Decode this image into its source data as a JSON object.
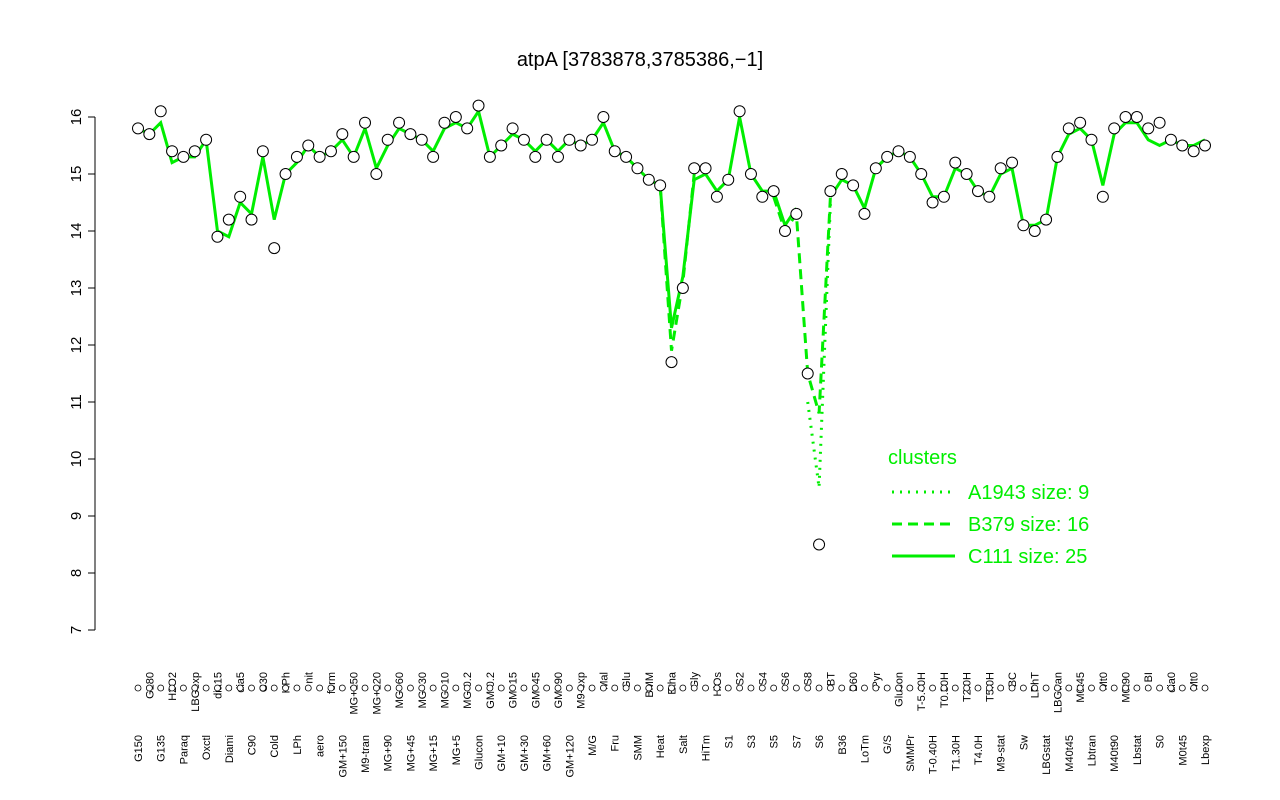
{
  "chart_data": {
    "type": "line",
    "title": "atpA [3783878,3785386,−1]",
    "categories": [
      "G150",
      "G180",
      "G135",
      "H2O2",
      "Paraq",
      "LBGexp",
      "Oxctl",
      "dia15",
      "Diami",
      "dia5",
      "C90",
      "C30",
      "Cold",
      "HPh",
      "LPh",
      "nit",
      "aero",
      "ferm",
      "GM+150",
      "MG+150",
      "M9-tran",
      "MG+120",
      "MG+90",
      "MG+60",
      "MG+45",
      "MG+30",
      "MG+15",
      "MG+10",
      "MG+5",
      "MG-0.2",
      "Glucon",
      "GM-0.2",
      "GM+10",
      "GM+15",
      "GM+30",
      "GM+45",
      "GM+60",
      "GM+90",
      "GM+120",
      "M9-exp",
      "M/G",
      "Mal",
      "Fru",
      "Glu",
      "SMM",
      "BMM",
      "Heat",
      "Etha",
      "Salt",
      "Gly",
      "HiTm",
      "HiOs",
      "S1",
      "S2",
      "S3",
      "S4",
      "S5",
      "S6",
      "S7",
      "S8",
      "S6",
      "BT",
      "B36",
      "B60",
      "LoTm",
      "Pyr",
      "G/S",
      "Glucon",
      "SMMPr",
      "T-5.40H",
      "T-0.40H",
      "T0.30H",
      "T1.30H",
      "T2.0H",
      "T4.0H",
      "T5.0H",
      "M9-stat",
      "BC",
      "Sw",
      "LPhT",
      "LBGstat",
      "LBGtran",
      "M40t45",
      "M0t45",
      "Lbtran",
      "Mt0",
      "M40t90",
      "M0t90",
      "Lbstat",
      "BI",
      "S0",
      "dia0",
      "M0t45",
      "Mt0",
      "Lbexp"
    ],
    "values": [
      15.8,
      15.7,
      16.1,
      15.4,
      15.3,
      15.4,
      15.6,
      13.9,
      14.2,
      14.6,
      14.2,
      15.4,
      13.7,
      15.0,
      15.3,
      15.5,
      15.3,
      15.4,
      15.7,
      15.3,
      15.9,
      15.0,
      15.6,
      15.9,
      15.7,
      15.6,
      15.3,
      15.9,
      16.0,
      15.8,
      16.2,
      15.3,
      15.5,
      15.8,
      15.6,
      15.3,
      15.6,
      15.3,
      15.6,
      15.5,
      15.6,
      16.0,
      15.4,
      15.3,
      15.1,
      14.9,
      14.8,
      11.7,
      13.0,
      15.1,
      15.1,
      14.6,
      14.9,
      16.1,
      15.0,
      14.6,
      14.7,
      14.0,
      14.3,
      11.5,
      8.5,
      14.7,
      15.0,
      14.8,
      14.3,
      15.1,
      15.3,
      15.4,
      15.3,
      15.0,
      14.5,
      14.6,
      15.2,
      15.0,
      14.7,
      14.6,
      15.1,
      15.2,
      14.1,
      14.0,
      14.2,
      15.3,
      15.8,
      15.9,
      15.6,
      14.6,
      15.8,
      16.0,
      16.0,
      15.8,
      15.9,
      15.6,
      15.5,
      15.4,
      15.5
    ],
    "point_color": "#ffffff",
    "series": [
      {
        "name": "A1943 size: 9",
        "color": "#00ee00",
        "dash": "2,6",
        "values": [
          null,
          null,
          null,
          null,
          null,
          null,
          null,
          null,
          null,
          null,
          null,
          null,
          null,
          null,
          null,
          null,
          null,
          null,
          null,
          null,
          null,
          null,
          null,
          null,
          null,
          null,
          null,
          null,
          null,
          null,
          null,
          null,
          null,
          null,
          null,
          null,
          null,
          null,
          null,
          null,
          null,
          null,
          null,
          null,
          null,
          null,
          null,
          null,
          null,
          null,
          null,
          null,
          null,
          null,
          null,
          null,
          null,
          null,
          null,
          11.0,
          9.5,
          14.5,
          null,
          null,
          null,
          null,
          null,
          null,
          null,
          null,
          null,
          null,
          null,
          null,
          null,
          null,
          null,
          null,
          null,
          null,
          null,
          null,
          null,
          null,
          null,
          null,
          null,
          null,
          null,
          null,
          null,
          null,
          null,
          null,
          null
        ]
      },
      {
        "name": "B379 size: 16",
        "color": "#00ee00",
        "dash": "10,6",
        "values": [
          null,
          null,
          null,
          null,
          null,
          null,
          null,
          null,
          null,
          null,
          null,
          null,
          null,
          null,
          null,
          null,
          null,
          null,
          null,
          null,
          null,
          null,
          null,
          null,
          null,
          null,
          null,
          null,
          null,
          null,
          null,
          null,
          null,
          null,
          null,
          null,
          null,
          null,
          null,
          null,
          null,
          null,
          null,
          null,
          null,
          null,
          14.8,
          11.9,
          13.1,
          15.0,
          null,
          null,
          null,
          null,
          null,
          null,
          14.6,
          14.0,
          14.3,
          11.5,
          10.8,
          14.6,
          null,
          null,
          null,
          null,
          null,
          null,
          null,
          null,
          null,
          null,
          null,
          null,
          null,
          null,
          null,
          null,
          null,
          null,
          null,
          null,
          null,
          null,
          null,
          null,
          null,
          null,
          null,
          null,
          null,
          null,
          null,
          null,
          null
        ]
      },
      {
        "name": "C111 size: 25",
        "color": "#00ee00",
        "dash": "",
        "values": [
          15.8,
          15.7,
          15.9,
          15.2,
          15.3,
          15.3,
          15.6,
          14.0,
          13.9,
          14.5,
          14.3,
          15.3,
          14.2,
          15.0,
          15.2,
          15.5,
          15.3,
          15.4,
          15.6,
          15.3,
          15.8,
          15.1,
          15.5,
          15.8,
          15.7,
          15.6,
          15.4,
          15.8,
          15.9,
          15.8,
          16.1,
          15.3,
          15.5,
          15.7,
          15.6,
          15.4,
          15.6,
          15.4,
          15.6,
          15.5,
          15.6,
          15.9,
          15.4,
          15.3,
          15.1,
          14.9,
          14.8,
          12.3,
          13.2,
          14.9,
          15.0,
          14.7,
          14.9,
          16.0,
          15.0,
          14.7,
          14.7,
          14.1,
          14.4,
          null,
          null,
          14.6,
          14.9,
          14.8,
          14.4,
          15.1,
          15.3,
          15.4,
          15.3,
          15.0,
          14.6,
          14.6,
          15.1,
          15.0,
          14.7,
          14.6,
          15.0,
          15.1,
          14.1,
          14.1,
          14.2,
          15.3,
          15.7,
          15.8,
          15.6,
          14.8,
          15.7,
          15.9,
          15.9,
          15.6,
          15.5,
          15.6,
          15.5,
          15.5,
          15.6
        ]
      }
    ],
    "ylim": [
      7,
      16
    ],
    "yticks": [
      7,
      8,
      9,
      10,
      11,
      12,
      13,
      14,
      15,
      16
    ],
    "legend_title": "clusters",
    "legend_position": "right"
  }
}
